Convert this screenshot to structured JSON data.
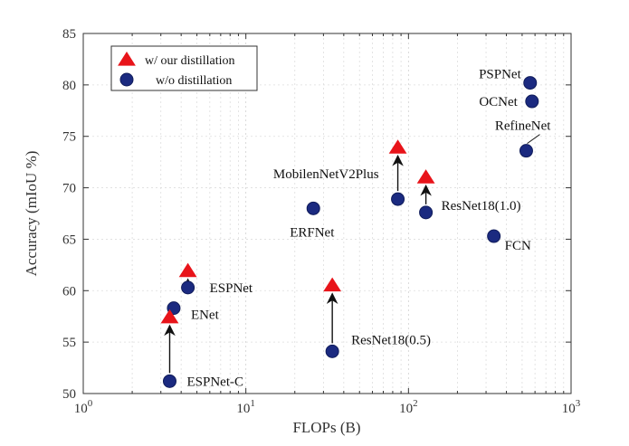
{
  "chart_data": {
    "type": "scatter",
    "xlabel": "FLOPs (B)",
    "ylabel": "Accuracy (mIoU %)",
    "x_scale": "log",
    "xlim": [
      1,
      1000
    ],
    "ylim": [
      50,
      85
    ],
    "x_ticks": [
      {
        "value": 1,
        "base": "10",
        "exp": "0"
      },
      {
        "value": 10,
        "base": "10",
        "exp": "1"
      },
      {
        "value": 100,
        "base": "10",
        "exp": "2"
      },
      {
        "value": 1000,
        "base": "10",
        "exp": "3"
      }
    ],
    "y_ticks": [
      50,
      55,
      60,
      65,
      70,
      75,
      80,
      85
    ],
    "grid": true,
    "legend_position": "top-left",
    "legend": [
      {
        "label": "w/ our distillation",
        "marker": "triangle",
        "color": "#e8141a"
      },
      {
        "label": "w/o distillation",
        "marker": "circle",
        "color": "#1b2a80"
      }
    ],
    "series": [
      {
        "name": "w/o distillation",
        "marker": "circle",
        "color": "#1b2a80",
        "points": [
          {
            "label": "PSPNet",
            "x": 560,
            "y": 80.2
          },
          {
            "label": "OCNet",
            "x": 575,
            "y": 78.4
          },
          {
            "label": "RefineNet",
            "x": 530,
            "y": 73.6
          },
          {
            "label": "MobilenNetV2Plus",
            "x": 86,
            "y": 68.9
          },
          {
            "label": "ResNet18(1.0)",
            "x": 128,
            "y": 67.6
          },
          {
            "label": "ERFNet",
            "x": 26,
            "y": 68.0
          },
          {
            "label": "FCN",
            "x": 335,
            "y": 65.3
          },
          {
            "label": "ESPNet",
            "x": 4.4,
            "y": 60.3
          },
          {
            "label": "ENet",
            "x": 3.6,
            "y": 58.3
          },
          {
            "label": "ResNet18(0.5)",
            "x": 34,
            "y": 54.1
          },
          {
            "label": "ESPNet-C",
            "x": 3.4,
            "y": 51.2
          }
        ]
      },
      {
        "name": "w/ our distillation",
        "marker": "triangle",
        "color": "#e8141a",
        "points": [
          {
            "label": "MobilenNetV2Plus",
            "x": 86,
            "y": 73.9
          },
          {
            "label": "ResNet18(1.0)",
            "x": 128,
            "y": 71.0
          },
          {
            "label": "ESPNet",
            "x": 4.4,
            "y": 61.9
          },
          {
            "label": "ResNet18(0.5)",
            "x": 34,
            "y": 60.5
          },
          {
            "label": "ESPNet-C",
            "x": 3.4,
            "y": 57.4
          }
        ]
      }
    ],
    "annotations": [
      {
        "label": "PSPNet",
        "x": 560,
        "y": 80.2,
        "dx": -10,
        "dy": -5,
        "anchor": "end"
      },
      {
        "label": "OCNet",
        "x": 575,
        "y": 78.4,
        "dx": -16,
        "dy": 5,
        "anchor": "end"
      },
      {
        "label": "RefineNet",
        "x": 530,
        "y": 73.6,
        "dx": 27,
        "dy": -23,
        "anchor": "end",
        "leader": true
      },
      {
        "label": "MobilenNetV2Plus",
        "x": 86,
        "y": 68.9,
        "dx": -21,
        "dy": -23,
        "anchor": "end"
      },
      {
        "label": "ResNet18(1.0)",
        "x": 128,
        "y": 67.6,
        "dx": 17,
        "dy": -3,
        "anchor": "start"
      },
      {
        "label": "ERFNet",
        "x": 26,
        "y": 68.0,
        "dx": -26,
        "dy": 31,
        "anchor": "start"
      },
      {
        "label": "FCN",
        "x": 335,
        "y": 65.3,
        "dx": 12,
        "dy": 15,
        "anchor": "start"
      },
      {
        "label": "ESPNet",
        "x": 4.4,
        "y": 60.3,
        "dx": 24,
        "dy": 5,
        "anchor": "start"
      },
      {
        "label": "ENet",
        "x": 3.6,
        "y": 58.3,
        "dx": 19,
        "dy": 12,
        "anchor": "start"
      },
      {
        "label": "ResNet18(0.5)",
        "x": 34,
        "y": 54.1,
        "dx": 21,
        "dy": -8,
        "anchor": "start"
      },
      {
        "label": "ESPNet-C",
        "x": 3.4,
        "y": 51.2,
        "dx": 19,
        "dy": 5,
        "anchor": "start"
      }
    ],
    "arrows": [
      {
        "x": 86,
        "from": 68.9,
        "to": 73.9
      },
      {
        "x": 128,
        "from": 67.6,
        "to": 71.0
      },
      {
        "x": 4.4,
        "from": 60.3,
        "to": 61.9
      },
      {
        "x": 34,
        "from": 54.1,
        "to": 60.5
      },
      {
        "x": 3.4,
        "from": 51.2,
        "to": 57.4
      }
    ]
  }
}
